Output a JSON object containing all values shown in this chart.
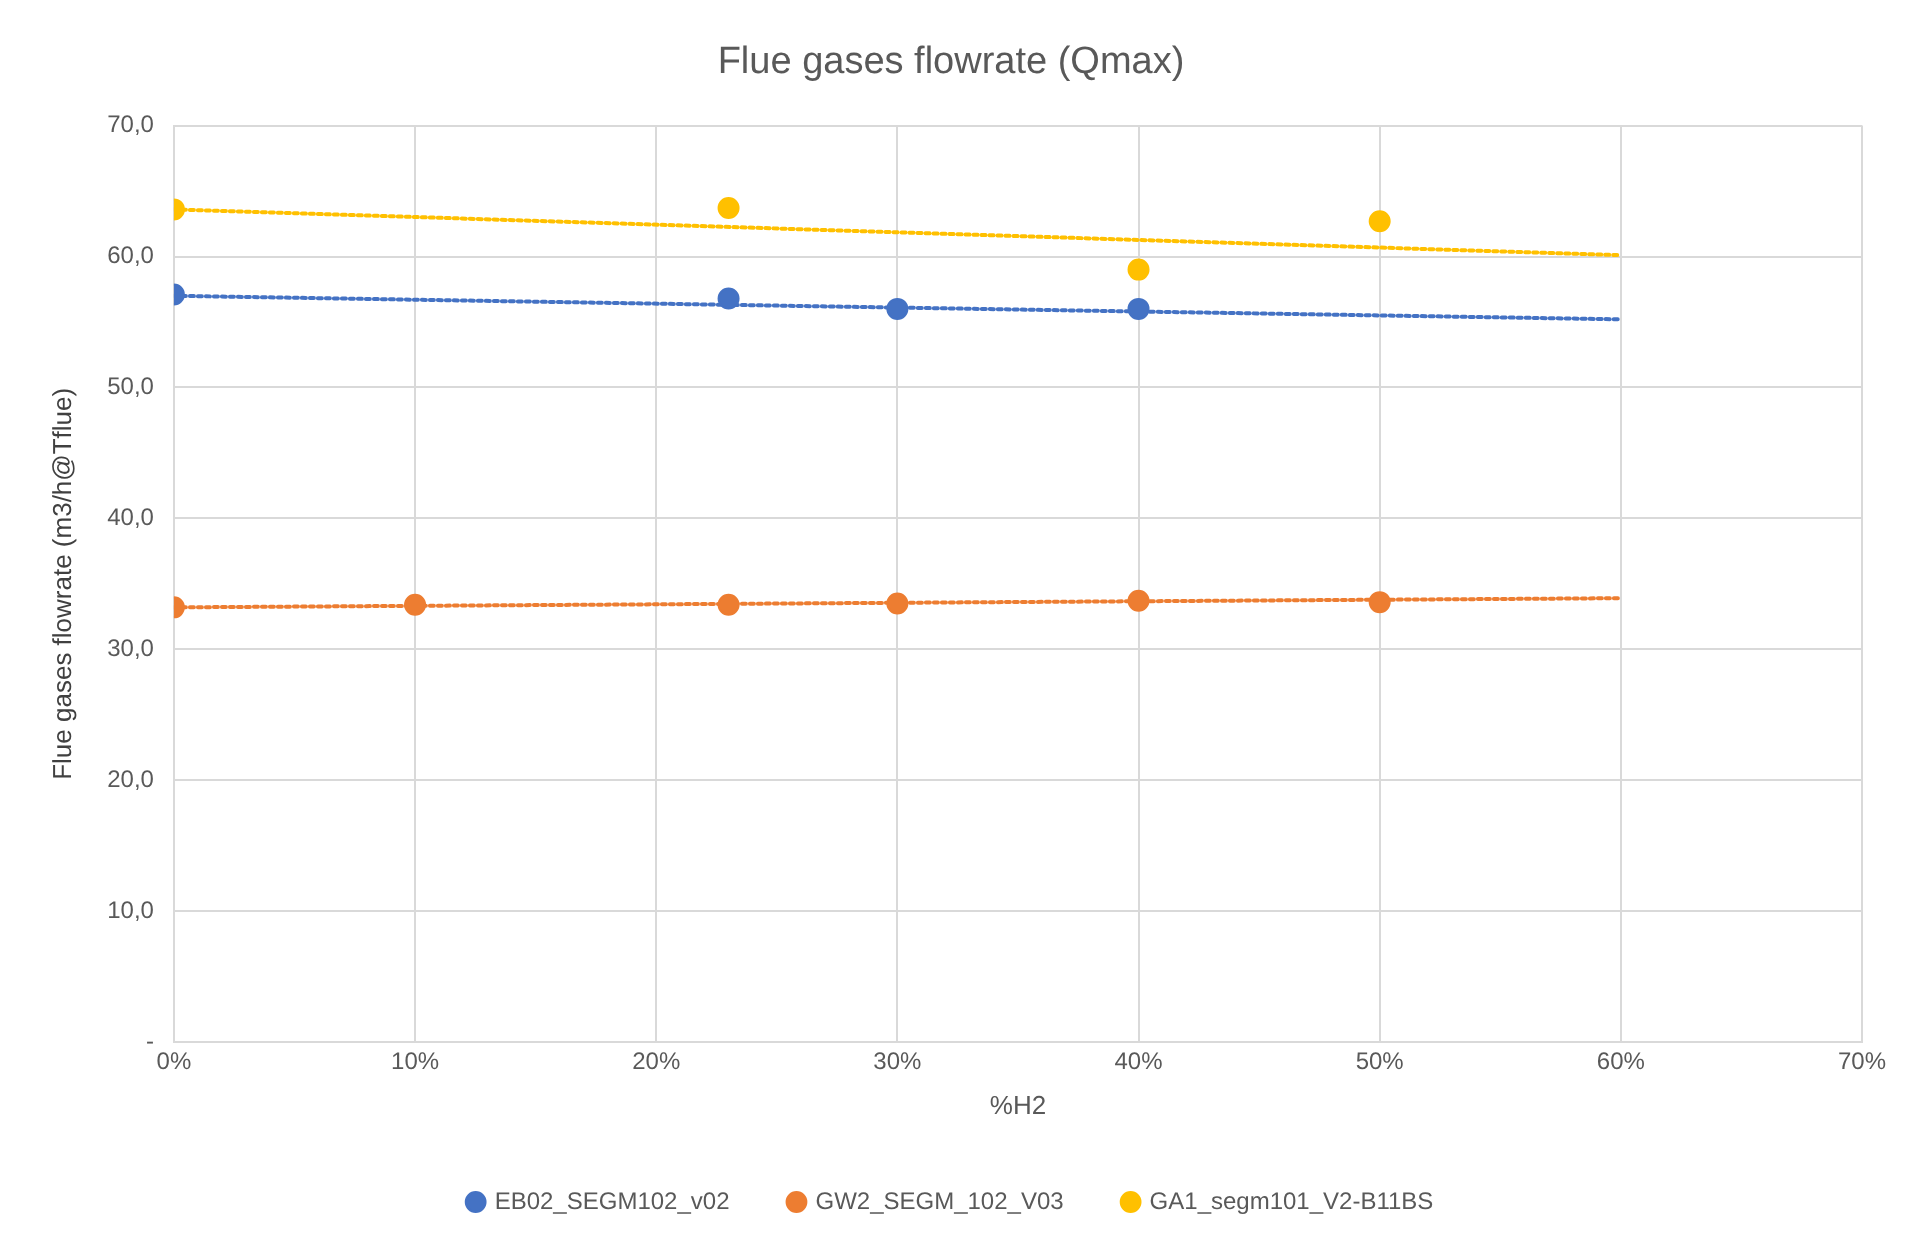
{
  "chart_data": {
    "type": "scatter",
    "title": "Flue gases flowrate (Qmax)",
    "xlabel": "%H2",
    "ylabel": "Flue gases flowrate (m3/h@Tflue)",
    "xlim": [
      0,
      70
    ],
    "xticks": [
      {
        "value": 0,
        "label": "0%"
      },
      {
        "value": 10,
        "label": "10%"
      },
      {
        "value": 20,
        "label": "20%"
      },
      {
        "value": 30,
        "label": "30%"
      },
      {
        "value": 40,
        "label": "40%"
      },
      {
        "value": 50,
        "label": "50%"
      },
      {
        "value": 60,
        "label": "60%"
      },
      {
        "value": 70,
        "label": "70%"
      }
    ],
    "ylim": [
      0,
      70
    ],
    "yticks": [
      {
        "value": 0,
        "label": "-"
      },
      {
        "value": 10,
        "label": "10,0"
      },
      {
        "value": 20,
        "label": "20,0"
      },
      {
        "value": 30,
        "label": "30,0"
      },
      {
        "value": 40,
        "label": "40,0"
      },
      {
        "value": 50,
        "label": "50,0"
      },
      {
        "value": 60,
        "label": "60,0"
      },
      {
        "value": 70,
        "label": "70,0"
      }
    ],
    "grid": true,
    "legend": "bottom",
    "marker": "circle",
    "series": [
      {
        "name": "EB02_SEGM102_v02",
        "color": "#4472c4",
        "x": [
          0,
          23,
          30,
          40
        ],
        "values": [
          57.1,
          56.8,
          56.0,
          56.0
        ]
      },
      {
        "name": "GW2_SEGM_102_V03",
        "color": "#ed7d31",
        "x": [
          0,
          10,
          23,
          30,
          40,
          50
        ],
        "values": [
          33.2,
          33.4,
          33.4,
          33.5,
          33.7,
          33.6
        ]
      },
      {
        "name": "GA1_segm101_V2-B11BS",
        "color": "#ffc000",
        "x": [
          0,
          23,
          40,
          50
        ],
        "values": [
          63.6,
          63.7,
          59.0,
          62.7
        ]
      },
      {
        "type": "line",
        "line_style": "dotted",
        "marker": "none",
        "color": "#4472c4",
        "x": [
          0,
          60
        ],
        "values": [
          57.0,
          55.2
        ]
      },
      {
        "type": "line",
        "line_style": "dotted",
        "marker": "none",
        "color": "#ed7d31",
        "x": [
          0,
          60
        ],
        "values": [
          33.2,
          33.9
        ]
      },
      {
        "type": "line",
        "line_style": "dotted",
        "marker": "none",
        "color": "#ffc000",
        "x": [
          0,
          60
        ],
        "values": [
          63.6,
          60.1
        ]
      }
    ]
  }
}
